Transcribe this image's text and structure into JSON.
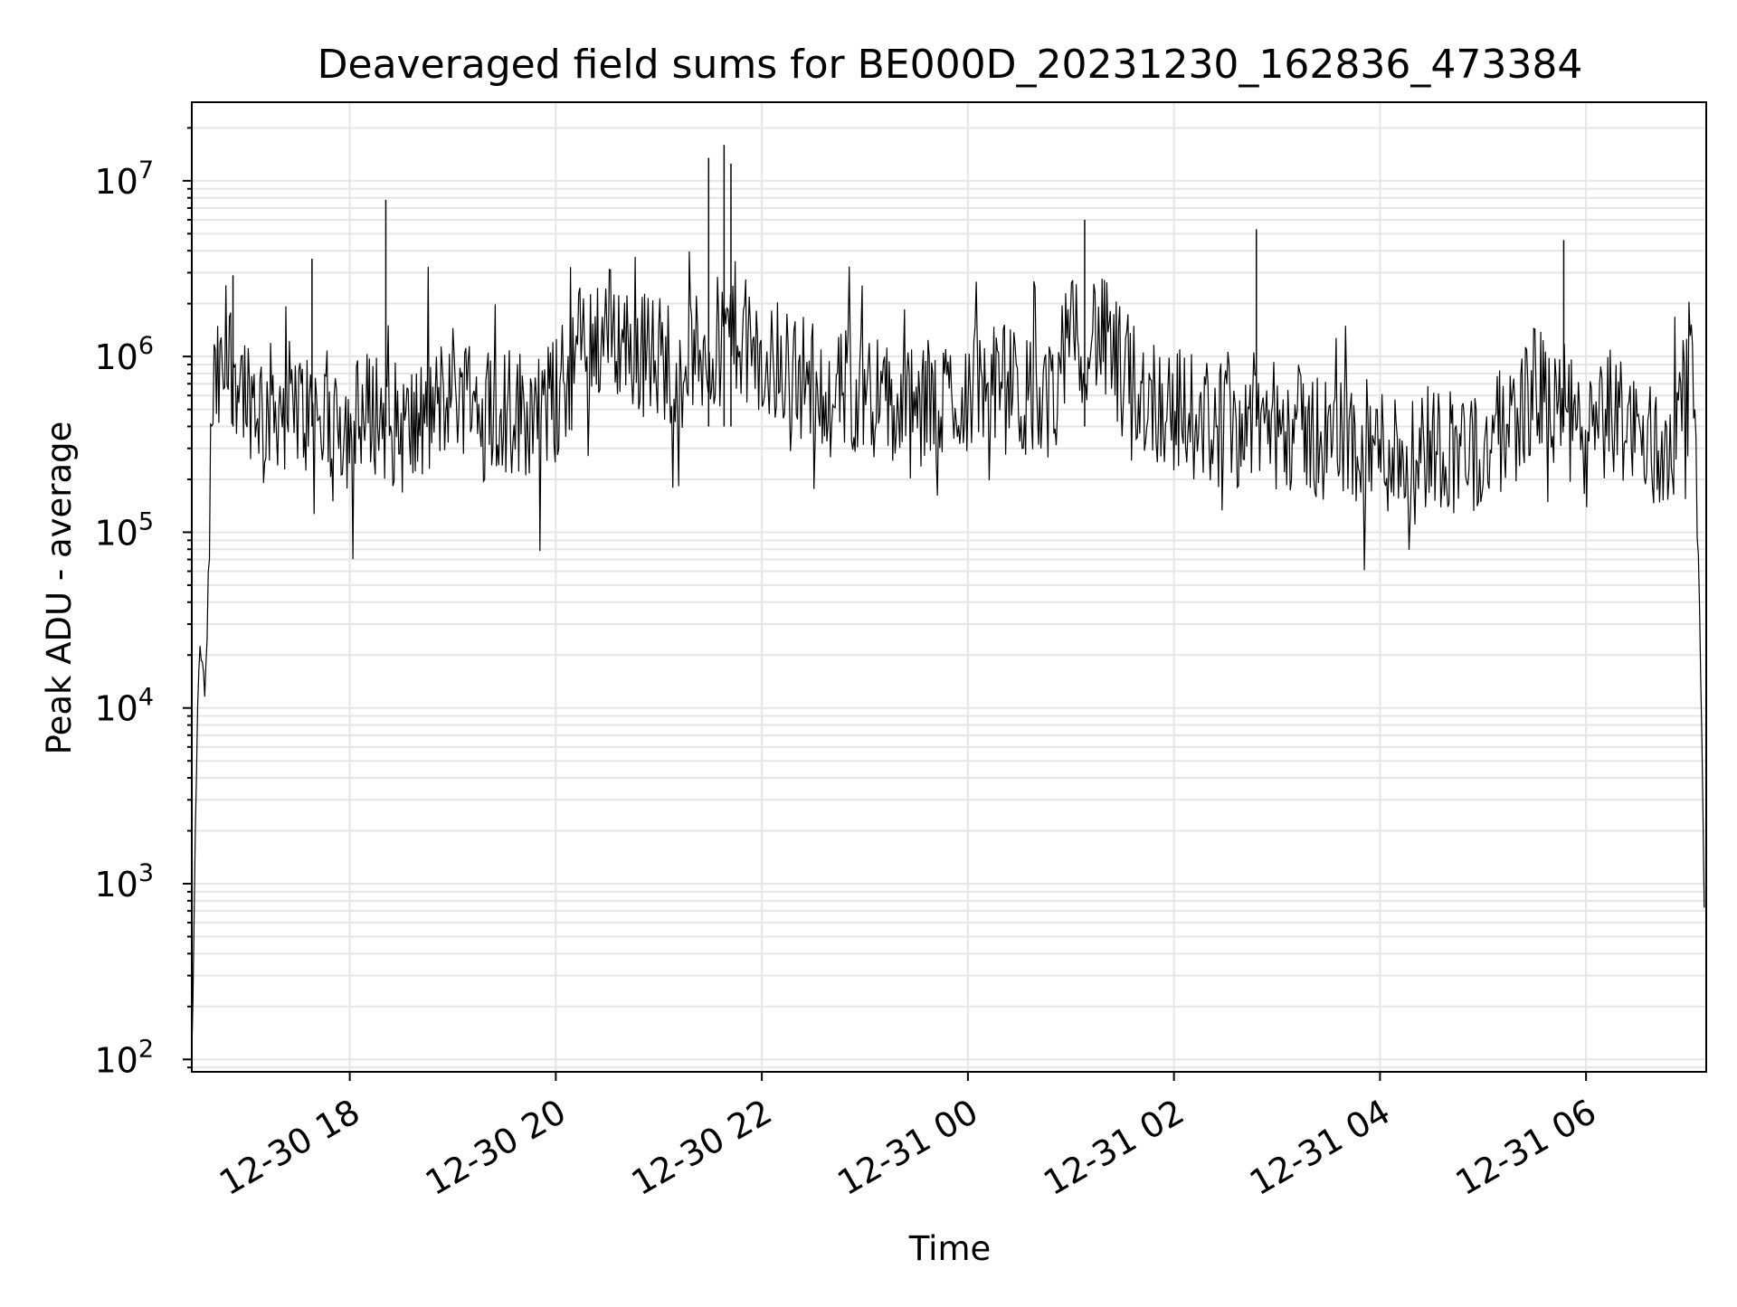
{
  "chart_data": {
    "type": "line",
    "title": "Deaveraged field sums for BE000D_20231230_162836_473384",
    "xlabel": "Time",
    "ylabel": "Peak ADU - average",
    "yscale": "log",
    "ylim": [
      85,
      28000000
    ],
    "xlim": [
      "2023-12-30 16:28",
      "2023-12-31 07:10"
    ],
    "x_ticks": [
      {
        "value": "2023-12-30 18:00",
        "label": "12-30 18"
      },
      {
        "value": "2023-12-30 20:00",
        "label": "12-30 20"
      },
      {
        "value": "2023-12-30 22:00",
        "label": "12-30 22"
      },
      {
        "value": "2023-12-31 00:00",
        "label": "12-31 00"
      },
      {
        "value": "2023-12-31 02:00",
        "label": "12-31 02"
      },
      {
        "value": "2023-12-31 04:00",
        "label": "12-31 04"
      },
      {
        "value": "2023-12-31 06:00",
        "label": "12-31 06"
      }
    ],
    "y_ticks": [
      {
        "value": 100,
        "base": "10",
        "exp": "2"
      },
      {
        "value": 1000,
        "base": "10",
        "exp": "3"
      },
      {
        "value": 10000,
        "base": "10",
        "exp": "4"
      },
      {
        "value": 100000,
        "base": "10",
        "exp": "5"
      },
      {
        "value": 1000000,
        "base": "10",
        "exp": "6"
      },
      {
        "value": 10000000,
        "base": "10",
        "exp": "7"
      }
    ],
    "grid": true,
    "line_color": "#000000",
    "grid_color": "#e6e6e6",
    "series": [
      {
        "x": [
          "2023-12-30 16:28",
          "2023-12-30 16:32",
          "2023-12-30 16:36",
          "2023-12-30 16:40",
          "2023-12-30 16:45",
          "2023-12-30 16:50",
          "2023-12-30 17:00",
          "2023-12-30 17:10",
          "2023-12-30 17:20",
          "2023-12-30 17:30",
          "2023-12-30 17:40",
          "2023-12-30 17:50",
          "2023-12-30 18:00",
          "2023-12-30 18:15",
          "2023-12-30 18:30",
          "2023-12-30 18:45",
          "2023-12-30 19:00",
          "2023-12-30 19:15",
          "2023-12-30 19:30",
          "2023-12-30 19:45",
          "2023-12-30 20:00",
          "2023-12-30 20:15",
          "2023-12-30 20:30",
          "2023-12-30 20:45",
          "2023-12-30 21:00",
          "2023-12-30 21:15",
          "2023-12-30 21:30",
          "2023-12-30 21:45",
          "2023-12-30 22:00",
          "2023-12-30 22:15",
          "2023-12-30 22:30",
          "2023-12-30 22:45",
          "2023-12-30 23:00",
          "2023-12-30 23:15",
          "2023-12-30 23:30",
          "2023-12-30 23:45",
          "2023-12-31 00:00",
          "2023-12-31 00:15",
          "2023-12-31 00:30",
          "2023-12-31 00:45",
          "2023-12-31 01:00",
          "2023-12-31 01:15",
          "2023-12-31 01:30",
          "2023-12-31 01:45",
          "2023-12-31 02:00",
          "2023-12-31 02:15",
          "2023-12-31 02:30",
          "2023-12-31 02:45",
          "2023-12-31 03:00",
          "2023-12-31 03:15",
          "2023-12-31 03:30",
          "2023-12-31 03:45",
          "2023-12-31 04:00",
          "2023-12-31 04:15",
          "2023-12-31 04:30",
          "2023-12-31 04:45",
          "2023-12-31 05:00",
          "2023-12-31 05:15",
          "2023-12-31 05:30",
          "2023-12-31 05:45",
          "2023-12-31 06:00",
          "2023-12-31 06:15",
          "2023-12-31 06:30",
          "2023-12-31 06:45",
          "2023-12-31 06:55",
          "2023-12-31 07:02",
          "2023-12-31 07:05",
          "2023-12-31 07:07",
          "2023-12-31 07:09"
        ],
        "y": [
          100,
          20000,
          12000,
          600000,
          700000,
          1000000,
          650000,
          500000,
          550000,
          500000,
          450000,
          480000,
          400000,
          500000,
          380000,
          420000,
          700000,
          550000,
          500000,
          480000,
          550000,
          1200000,
          1500000,
          1100000,
          1000000,
          900000,
          1100000,
          1500000,
          800000,
          900000,
          700000,
          600000,
          700000,
          500000,
          450000,
          550000,
          650000,
          700000,
          600000,
          500000,
          1200000,
          1400000,
          800000,
          600000,
          500000,
          450000,
          400000,
          450000,
          400000,
          380000,
          350000,
          330000,
          300000,
          280000,
          320000,
          300000,
          280000,
          400000,
          650000,
          550000,
          300000,
          500000,
          350000,
          280000,
          500000,
          700000,
          150000,
          14000,
          450
        ]
      }
    ],
    "spikes": [
      {
        "x": "2023-12-30 16:52",
        "y": 2900000
      },
      {
        "x": "2023-12-30 17:38",
        "y": 3600000
      },
      {
        "x": "2023-12-30 18:21",
        "y": 7800000
      },
      {
        "x": "2023-12-30 21:29",
        "y": 13500000
      },
      {
        "x": "2023-12-30 21:38",
        "y": 16000000
      },
      {
        "x": "2023-12-30 21:42",
        "y": 12500000
      },
      {
        "x": "2023-12-31 01:08",
        "y": 6000000
      },
      {
        "x": "2023-12-31 02:48",
        "y": 5300000
      },
      {
        "x": "2023-12-31 05:47",
        "y": 4600000
      }
    ]
  }
}
